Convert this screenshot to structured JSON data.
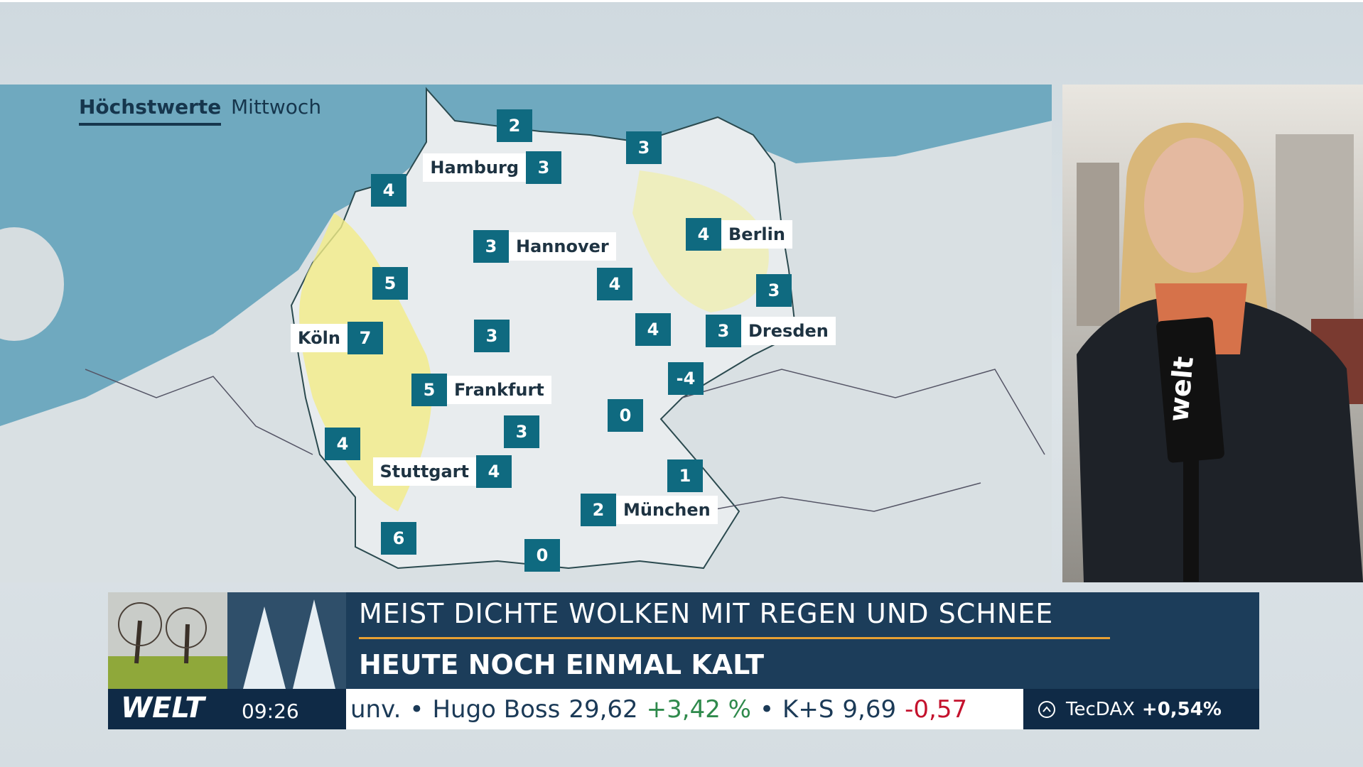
{
  "header": {
    "title": "Höchstwerte",
    "day": "Mittwoch"
  },
  "map": {
    "cities": [
      {
        "name": "Hamburg",
        "temp": 3
      },
      {
        "name": "Hannover",
        "temp": 3
      },
      {
        "name": "Berlin",
        "temp": 4
      },
      {
        "name": "Köln",
        "temp": 7
      },
      {
        "name": "Dresden",
        "temp": 3
      },
      {
        "name": "Frankfurt",
        "temp": 5
      },
      {
        "name": "Stuttgart",
        "temp": 4
      },
      {
        "name": "München",
        "temp": 2
      }
    ],
    "points": [
      2,
      3,
      4,
      5,
      4,
      3,
      3,
      4,
      -4,
      0,
      3,
      4,
      1,
      6,
      0
    ]
  },
  "lower_third": {
    "headline": "MEIST DICHTE WOLKEN MIT REGEN UND SCHNEE",
    "subheadline": "HEUTE NOCH EINMAL KALT",
    "logo": "WELT",
    "time": "09:26",
    "mic_flag": "welt"
  },
  "ticker": {
    "items": [
      {
        "text": "unv."
      },
      {
        "separator": "•",
        "name": "Hugo Boss",
        "price": "29,62",
        "change": "+3,42 %"
      },
      {
        "separator": "•",
        "name": "K+S",
        "price": "9,69",
        "change": "-0,57"
      }
    ],
    "index": {
      "name": "TecDAX",
      "change": "+0,54%"
    }
  }
}
